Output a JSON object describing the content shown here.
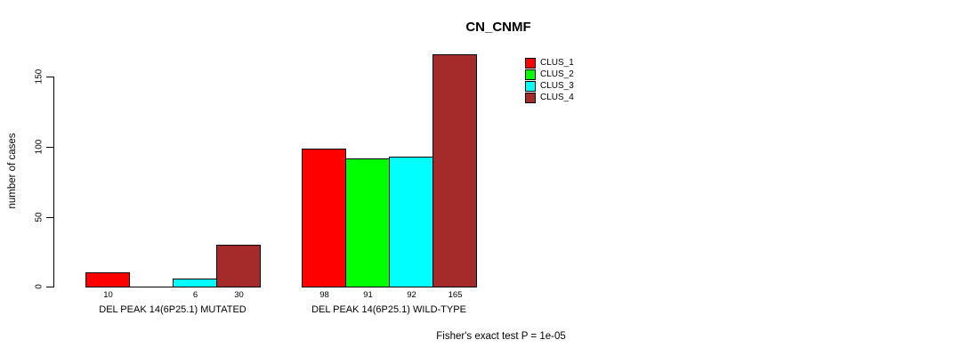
{
  "title": "CN_CNMF",
  "footer_note": "Fisher's exact test P = 1e-05",
  "chart_data": {
    "type": "bar",
    "title": "CN_CNMF",
    "xlabel": "",
    "ylabel": "number of cases",
    "categories": [
      "DEL PEAK 14(6P25.1) MUTATED",
      "DEL PEAK 14(6P25.1) WILD-TYPE"
    ],
    "series": [
      {
        "name": "CLUS_1",
        "color": "#ff0000",
        "values": [
          10,
          98
        ]
      },
      {
        "name": "CLUS_2",
        "color": "#00ff00",
        "values": [
          0,
          91
        ]
      },
      {
        "name": "CLUS_3",
        "color": "#00ffff",
        "values": [
          6,
          92
        ]
      },
      {
        "name": "CLUS_4",
        "color": "#a52a2a",
        "values": [
          30,
          165
        ]
      }
    ],
    "bar_value_labels": [
      [
        "10",
        "",
        "6",
        "30"
      ],
      [
        "98",
        "91",
        "92",
        "165"
      ]
    ],
    "yticks": [
      0,
      50,
      100,
      150
    ],
    "ylim": [
      0,
      165
    ],
    "grid": false,
    "legend_position": "top-right",
    "legend_entries": [
      "CLUS_1",
      "CLUS_2",
      "CLUS_3",
      "CLUS_4"
    ],
    "annotation": "Fisher's exact test P = 1e-05",
    "axis_color": "#000000",
    "bar_border_color": "#000000"
  }
}
